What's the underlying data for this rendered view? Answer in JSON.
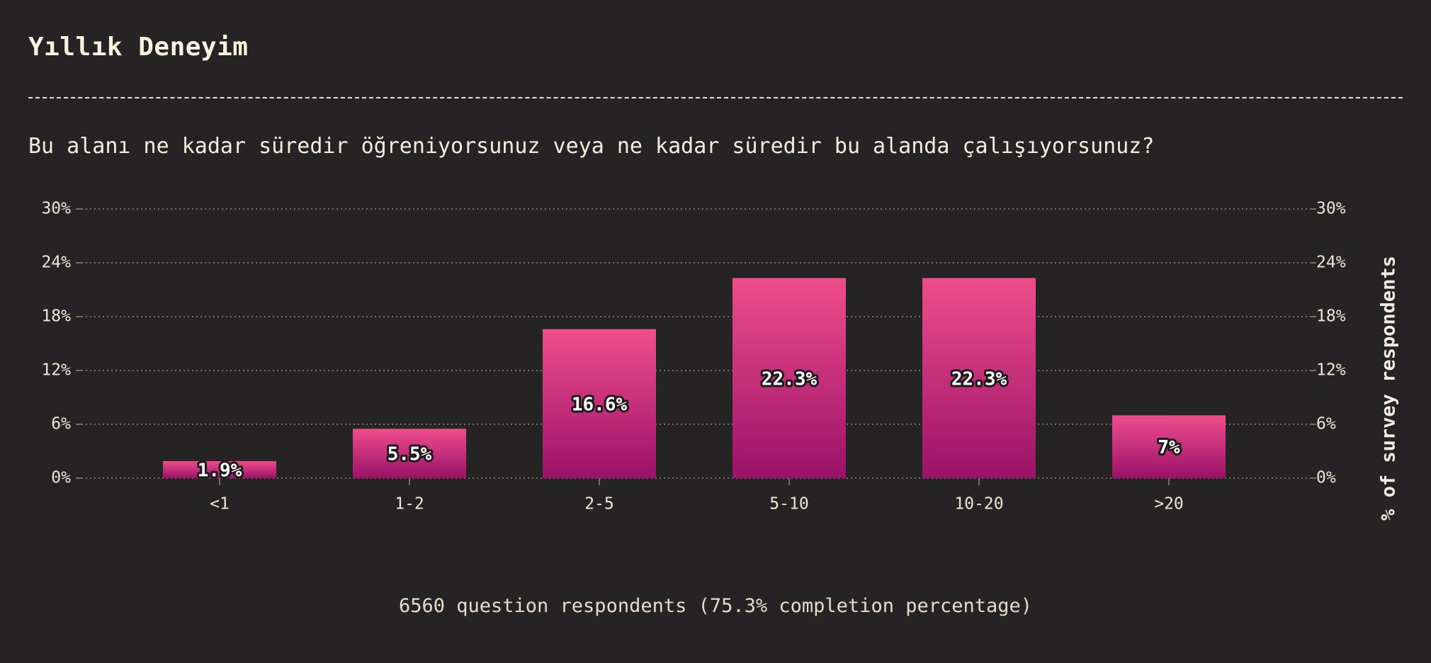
{
  "header": {
    "title": "Yıllık Deneyim",
    "question": "Bu alanı ne kadar süredir öğreniyorsunuz veya ne kadar süredir bu alanda çalışıyorsunuz?"
  },
  "footer": {
    "note": "6560 question respondents (75.3% completion percentage)"
  },
  "colors": {
    "background": "#262324",
    "bar_top": "#ef4d8c",
    "bar_bottom": "#9a1268",
    "grid": "#8f8782",
    "text": "#f4ecdd"
  },
  "chart_data": {
    "type": "bar",
    "categories": [
      "<1",
      "1-2",
      "2-5",
      "5-10",
      "10-20",
      ">20"
    ],
    "values": [
      1.9,
      5.5,
      16.6,
      22.3,
      22.3,
      7
    ],
    "data_labels": [
      "1.9%",
      "5.5%",
      "16.6%",
      "22.3%",
      "22.3%",
      "7%"
    ],
    "ylim": [
      0,
      30
    ],
    "yticks": [
      0,
      6,
      12,
      18,
      24,
      30
    ],
    "ytick_labels": [
      "0%",
      "6%",
      "12%",
      "18%",
      "24%",
      "30%"
    ],
    "ylabel_right": "% of survey respondents",
    "grid": true
  }
}
